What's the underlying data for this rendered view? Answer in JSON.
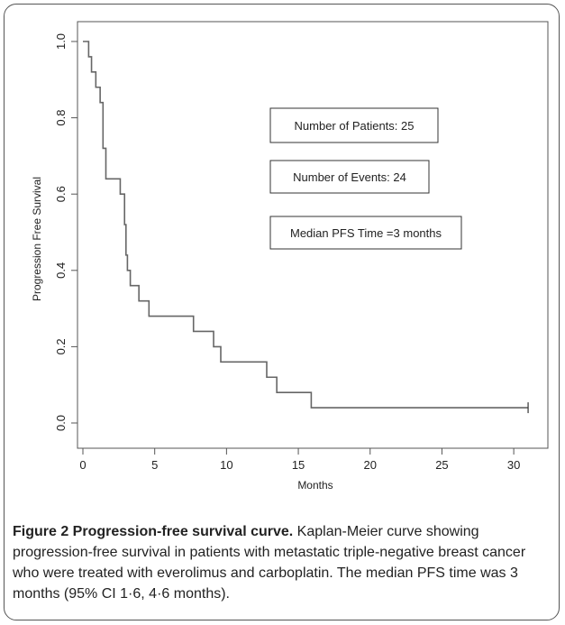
{
  "chart_data": {
    "type": "line",
    "title": "",
    "xlabel": "Months",
    "ylabel": "Progression Free Survival",
    "xlim": [
      0,
      32
    ],
    "ylim": [
      0,
      1
    ],
    "x_ticks": [
      0,
      5,
      10,
      15,
      20,
      25,
      30
    ],
    "y_ticks": [
      "0.0",
      "0.2",
      "0.4",
      "0.6",
      "0.8",
      "1.0"
    ],
    "grid": false,
    "step": true,
    "series": [
      {
        "x": [
          0,
          0.4,
          0.6,
          0.9,
          1.2,
          1.4,
          1.6,
          2.6,
          2.9,
          3.0,
          3.1,
          3.3,
          3.9,
          4.6,
          7.7,
          9.1,
          9.6,
          12.8,
          13.5,
          15.9,
          31.0
        ],
        "y": [
          1.0,
          0.96,
          0.92,
          0.88,
          0.84,
          0.72,
          0.64,
          0.6,
          0.52,
          0.44,
          0.4,
          0.36,
          0.32,
          0.28,
          0.24,
          0.2,
          0.16,
          0.12,
          0.08,
          0.04,
          0.04
        ]
      }
    ],
    "censored": [
      {
        "x": 31.0,
        "y": 0.04
      }
    ],
    "annotations": [
      "Number of Patients: 25",
      "Number of Events: 24",
      "Median PFS Time =3 months"
    ]
  },
  "caption": {
    "label": "Figure 2 Progression-free survival curve.",
    "text": " Kaplan-Meier curve showing progression-free survival in patients with metastatic triple-negative breast cancer who were treated with everolimus and carboplatin. The median PFS time was 3 months (95% CI 1·6, 4·6 months)."
  }
}
